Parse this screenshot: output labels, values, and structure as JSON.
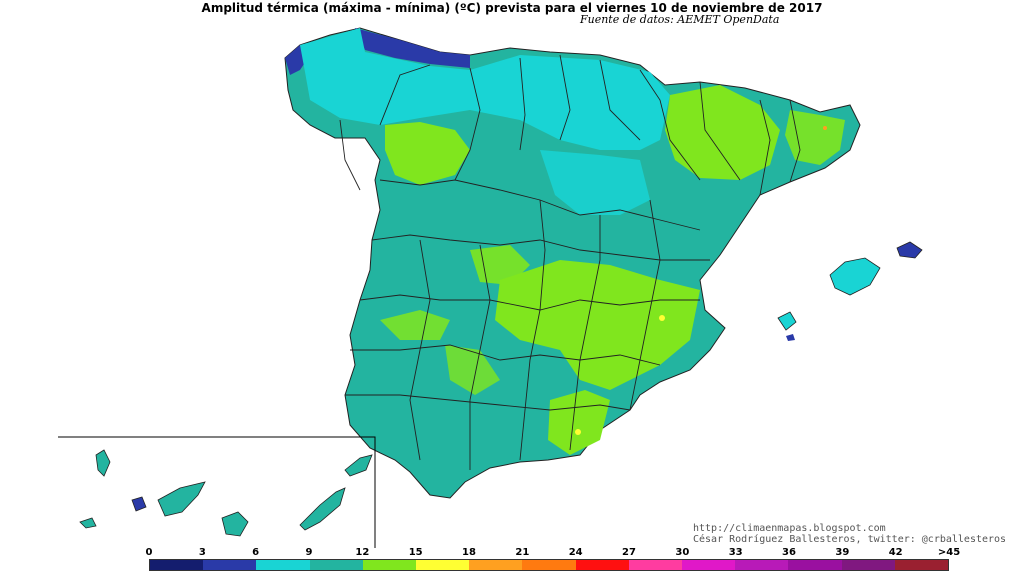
{
  "map": {
    "title": "Amplitud térmica (máxima - mínima) (ºC) prevista para el viernes 10 de noviembre de 2017",
    "subtitle": "Fuente de datos: AEMET OpenData",
    "credits": [
      "http://climaenmapas.blogspot.com",
      "César Rodríguez Ballesteros, twitter: @crballesteros"
    ],
    "regions": [
      "Spain (Peninsula)",
      "Balearic Islands",
      "Canary Islands"
    ]
  },
  "legend": {
    "ticks": [
      "0",
      "3",
      "6",
      "9",
      "12",
      "15",
      "18",
      "21",
      "24",
      "27",
      "30",
      "33",
      "36",
      "39",
      "42",
      ">45"
    ],
    "colors": [
      "#141d6e",
      "#2a3aa8",
      "#19d4d4",
      "#23b4a0",
      "#80e61e",
      "#ffff33",
      "#ffa020",
      "#ff7a10",
      "#ff1010",
      "#ff3ca0",
      "#e018c8",
      "#b81ab8",
      "#9a10a0",
      "#801880",
      "#9a2030"
    ]
  },
  "colors": {
    "frame": "#000000",
    "province_border": "#222222"
  }
}
